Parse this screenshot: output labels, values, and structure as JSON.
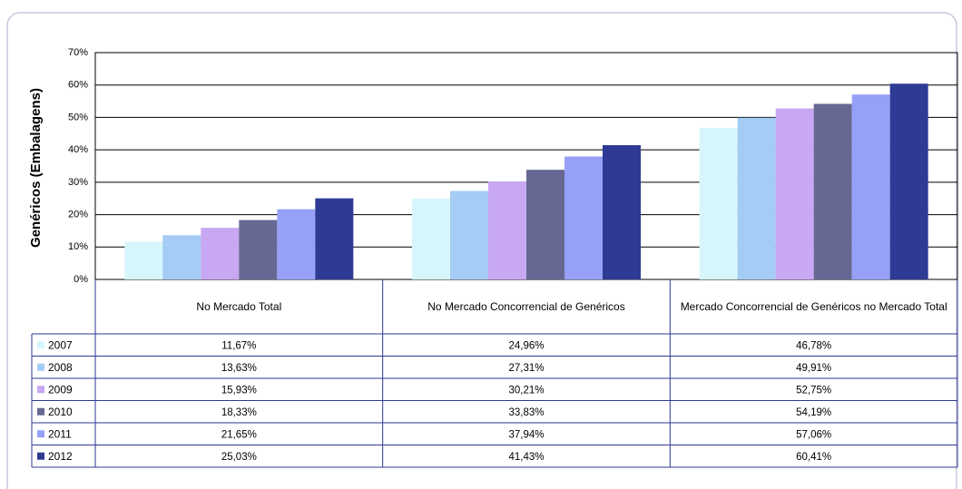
{
  "chart_data": {
    "type": "bar",
    "y_label": "Genéricos (Embalagens)",
    "categories": [
      "No Mercado Total",
      "No Mercado Concorrencial de Genéricos",
      "Mercado Concorrencial de Genéricos no Mercado Total"
    ],
    "series": [
      {
        "name": "2007",
        "color": "#d6f6fb",
        "values": [
          11.67,
          24.96,
          46.78
        ],
        "value_labels": [
          "11,67%",
          "24,96%",
          "46,78%"
        ]
      },
      {
        "name": "2008",
        "color": "#a4ccf4",
        "values": [
          13.63,
          27.31,
          49.91
        ],
        "value_labels": [
          "13,63%",
          "27,31%",
          "49,91%"
        ]
      },
      {
        "name": "2009",
        "color": "#c8a8f2",
        "values": [
          15.93,
          30.21,
          52.75
        ],
        "value_labels": [
          "15,93%",
          "30,21%",
          "52,75%"
        ]
      },
      {
        "name": "2010",
        "color": "#666893",
        "values": [
          18.33,
          33.83,
          54.19
        ],
        "value_labels": [
          "18,33%",
          "33,83%",
          "54,19%"
        ]
      },
      {
        "name": "2011",
        "color": "#96a0f6",
        "values": [
          21.65,
          37.94,
          57.06
        ],
        "value_labels": [
          "21,65%",
          "37,94%",
          "57,06%"
        ]
      },
      {
        "name": "2012",
        "color": "#2e3a93",
        "values": [
          25.03,
          41.43,
          60.41
        ],
        "value_labels": [
          "25,03%",
          "41,43%",
          "60,41%"
        ]
      }
    ],
    "ylim": [
      0,
      70
    ],
    "yticks": [
      {
        "value": 0,
        "label": "0%"
      },
      {
        "value": 10,
        "label": "10%"
      },
      {
        "value": 20,
        "label": "20%"
      },
      {
        "value": 30,
        "label": "30%"
      },
      {
        "value": 40,
        "label": "40%"
      },
      {
        "value": 50,
        "label": "50%"
      },
      {
        "value": 60,
        "label": "60%"
      },
      {
        "value": 70,
        "label": "70%"
      }
    ],
    "grid": true
  }
}
